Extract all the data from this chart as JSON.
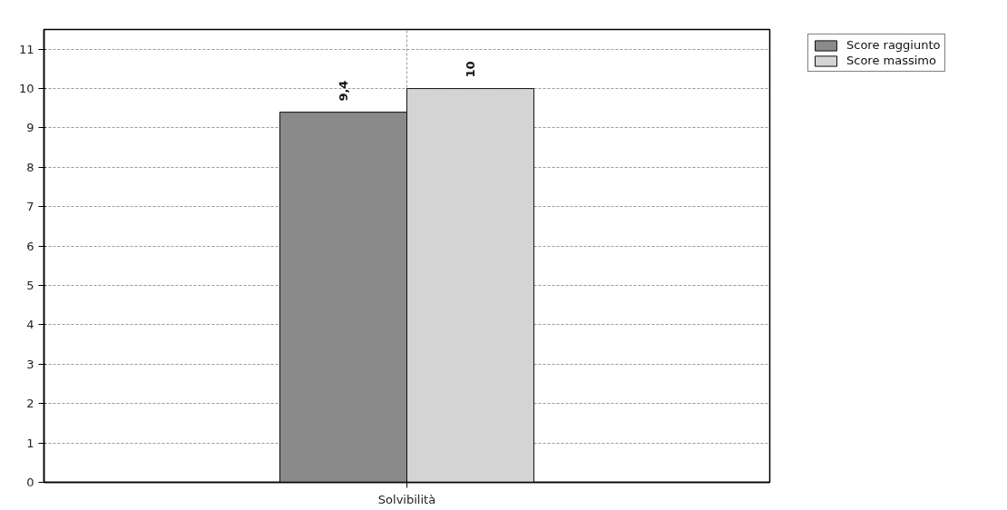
{
  "chart_data": {
    "type": "bar",
    "categories": [
      "Solvibilità"
    ],
    "series": [
      {
        "name": "Score raggiunto",
        "color": "#8a8a8a",
        "values": [
          9.4
        ],
        "value_labels": [
          "9,4"
        ]
      },
      {
        "name": "Score massimo",
        "color": "#d4d4d4",
        "values": [
          10
        ],
        "value_labels": [
          "10"
        ]
      }
    ],
    "ylim": [
      0,
      11.5
    ],
    "yticks": [
      0,
      1,
      2,
      3,
      4,
      5,
      6,
      7,
      8,
      9,
      10,
      11
    ],
    "grid": true,
    "legend": "top right"
  }
}
